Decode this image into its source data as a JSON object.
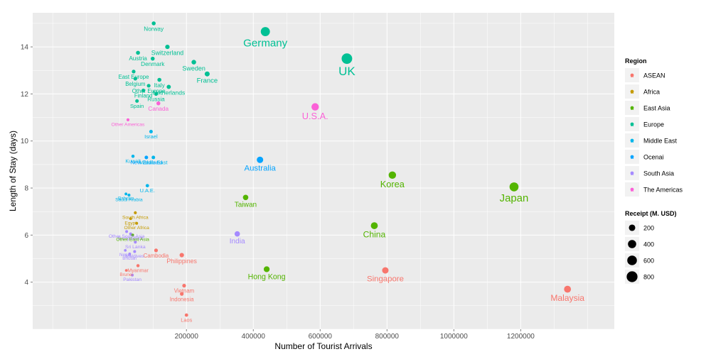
{
  "chart_data": {
    "type": "scatter",
    "title": "",
    "xlabel": "Number of Tourist Arrivals",
    "ylabel": "Length of Stay (days)",
    "xlim": [
      -260000,
      1480000
    ],
    "ylim": [
      2.0,
      15.45
    ],
    "x_ticks": [
      200000,
      400000,
      600000,
      800000,
      1000000,
      1200000
    ],
    "x_tick_labels": [
      "200000",
      "400000",
      "600000",
      "800000",
      "1000000",
      "1200000"
    ],
    "y_ticks": [
      4,
      6,
      8,
      10,
      12,
      14
    ],
    "y_tick_labels": [
      "4",
      "6",
      "8",
      "10",
      "12",
      "14"
    ],
    "grid": true,
    "legend_placement": "right",
    "color_legend": {
      "title": "Region",
      "entries": [
        {
          "name": "ASEAN",
          "color": "#f8766d"
        },
        {
          "name": "Africa",
          "color": "#c49a00"
        },
        {
          "name": "East Asia",
          "color": "#53b400"
        },
        {
          "name": "Europe",
          "color": "#00c094"
        },
        {
          "name": "Middle East",
          "color": "#00b6eb"
        },
        {
          "name": "Ocenai",
          "color": "#06a4ff"
        },
        {
          "name": "South Asia",
          "color": "#a58aff"
        },
        {
          "name": "The Americas",
          "color": "#fb61d7"
        }
      ]
    },
    "size_legend": {
      "title": "Receipt (M. USD)",
      "entries": [
        {
          "label": "200",
          "value": 200
        },
        {
          "label": "400",
          "value": 400
        },
        {
          "label": "600",
          "value": 600
        },
        {
          "label": "800",
          "value": 800
        }
      ]
    },
    "points": [
      {
        "label": "Norway",
        "region": "Europe",
        "x": 102000,
        "y": 15.0,
        "receipt": 40
      },
      {
        "label": "Germany",
        "region": "Europe",
        "x": 436000,
        "y": 14.65,
        "receipt": 520
      },
      {
        "label": "Switzerland",
        "region": "Europe",
        "x": 143000,
        "y": 14.0,
        "receipt": 60
      },
      {
        "label": "Austria",
        "region": "Europe",
        "x": 55000,
        "y": 13.75,
        "receipt": 40
      },
      {
        "label": "Denmark",
        "region": "Europe",
        "x": 99000,
        "y": 13.5,
        "receipt": 40
      },
      {
        "label": "Sweden",
        "region": "Europe",
        "x": 222000,
        "y": 13.35,
        "receipt": 70
      },
      {
        "label": "UK",
        "region": "Europe",
        "x": 680000,
        "y": 13.5,
        "receipt": 750
      },
      {
        "label": "France",
        "region": "Europe",
        "x": 262000,
        "y": 12.85,
        "receipt": 90
      },
      {
        "label": "East Europe",
        "region": "Europe",
        "x": 42000,
        "y": 12.95,
        "receipt": 30
      },
      {
        "label": "Belgium",
        "region": "Europe",
        "x": 47000,
        "y": 12.65,
        "receipt": 30
      },
      {
        "label": "Italy",
        "region": "Europe",
        "x": 119000,
        "y": 12.6,
        "receipt": 40
      },
      {
        "label": "Netherlands",
        "region": "Europe",
        "x": 147000,
        "y": 12.3,
        "receipt": 50
      },
      {
        "label": "Other Europe",
        "region": "Europe",
        "x": 87000,
        "y": 12.35,
        "receipt": 30
      },
      {
        "label": "Finland",
        "region": "Europe",
        "x": 71000,
        "y": 12.15,
        "receipt": 30
      },
      {
        "label": "Russia",
        "region": "Europe",
        "x": 109000,
        "y": 12.0,
        "receipt": 35
      },
      {
        "label": "Spain",
        "region": "Europe",
        "x": 52000,
        "y": 11.7,
        "receipt": 25
      },
      {
        "label": "Canada",
        "region": "The Americas",
        "x": 116000,
        "y": 11.6,
        "receipt": 40
      },
      {
        "label": "U.S.A.",
        "region": "The Americas",
        "x": 585000,
        "y": 11.45,
        "receipt": 300
      },
      {
        "label": "Other Americas",
        "region": "The Americas",
        "x": 25000,
        "y": 10.9,
        "receipt": 10
      },
      {
        "label": "Israel",
        "region": "Middle East",
        "x": 94000,
        "y": 10.4,
        "receipt": 25
      },
      {
        "label": "Kuwait",
        "region": "Middle East",
        "x": 40000,
        "y": 9.35,
        "receipt": 15
      },
      {
        "label": "New Zealand",
        "region": "Ocenai",
        "x": 80000,
        "y": 9.3,
        "receipt": 25
      },
      {
        "label": "Middle East",
        "region": "Middle East",
        "x": 101000,
        "y": 9.3,
        "receipt": 25
      },
      {
        "label": "Australia",
        "region": "Ocenai",
        "x": 420000,
        "y": 9.2,
        "receipt": 200
      },
      {
        "label": "Korea",
        "region": "East Asia",
        "x": 816000,
        "y": 8.55,
        "receipt": 300
      },
      {
        "label": "Japan",
        "region": "East Asia",
        "x": 1180000,
        "y": 8.05,
        "receipt": 500
      },
      {
        "label": "U.A.E.",
        "region": "Middle East",
        "x": 83000,
        "y": 8.1,
        "receipt": 20
      },
      {
        "label": "Taiwan",
        "region": "East Asia",
        "x": 377000,
        "y": 7.6,
        "receipt": 120
      },
      {
        "label": "Saudi Arabia",
        "region": "Middle East",
        "x": 28000,
        "y": 7.7,
        "receipt": 10
      },
      {
        "label": "Bahrain",
        "region": "Middle East",
        "x": 19000,
        "y": 7.75,
        "receipt": 6
      },
      {
        "label": "South Africa",
        "region": "Africa",
        "x": 47000,
        "y": 6.95,
        "receipt": 10
      },
      {
        "label": "Egypt",
        "region": "Africa",
        "x": 33000,
        "y": 6.7,
        "receipt": 6
      },
      {
        "label": "Other Africa",
        "region": "Africa",
        "x": 51000,
        "y": 6.5,
        "receipt": 8
      },
      {
        "label": "China",
        "region": "East Asia",
        "x": 762000,
        "y": 6.4,
        "receipt": 250
      },
      {
        "label": "Other South Asia",
        "region": "South Asia",
        "x": 21000,
        "y": 6.15,
        "receipt": 8
      },
      {
        "label": "Bangladesh",
        "region": "South Asia",
        "x": 33000,
        "y": 6.05,
        "receipt": 8
      },
      {
        "label": "Other East Asia",
        "region": "East Asia",
        "x": 39000,
        "y": 6.0,
        "receipt": 8
      },
      {
        "label": "India",
        "region": "South Asia",
        "x": 352000,
        "y": 6.05,
        "receipt": 120
      },
      {
        "label": "Sri Lanka",
        "region": "South Asia",
        "x": 47000,
        "y": 5.7,
        "receipt": 10
      },
      {
        "label": "Cambodia",
        "region": "ASEAN",
        "x": 109000,
        "y": 5.35,
        "receipt": 30
      },
      {
        "label": "Nepal",
        "region": "South Asia",
        "x": 17000,
        "y": 5.35,
        "receipt": 5
      },
      {
        "label": "Bhutan",
        "region": "South Asia",
        "x": 30000,
        "y": 5.2,
        "receipt": 5
      },
      {
        "label": "Maldives",
        "region": "South Asia",
        "x": 45000,
        "y": 5.3,
        "receipt": 8
      },
      {
        "label": "Philippines",
        "region": "ASEAN",
        "x": 186000,
        "y": 5.15,
        "receipt": 60
      },
      {
        "label": "Myanmar",
        "region": "ASEAN",
        "x": 55000,
        "y": 4.7,
        "receipt": 15
      },
      {
        "label": "Hong Kong",
        "region": "East Asia",
        "x": 440000,
        "y": 4.55,
        "receipt": 150
      },
      {
        "label": "Brunei",
        "region": "ASEAN",
        "x": 20000,
        "y": 4.5,
        "receipt": 5
      },
      {
        "label": "Pakistan",
        "region": "South Asia",
        "x": 38000,
        "y": 4.3,
        "receipt": 8
      },
      {
        "label": "Singapore",
        "region": "ASEAN",
        "x": 795000,
        "y": 4.5,
        "receipt": 200
      },
      {
        "label": "Vietnam",
        "region": "ASEAN",
        "x": 193000,
        "y": 3.85,
        "receipt": 30
      },
      {
        "label": "Malaysia",
        "region": "ASEAN",
        "x": 1340000,
        "y": 3.7,
        "receipt": 250
      },
      {
        "label": "Indonesia",
        "region": "ASEAN",
        "x": 186000,
        "y": 3.5,
        "receipt": 30
      },
      {
        "label": "Laos",
        "region": "ASEAN",
        "x": 200000,
        "y": 2.6,
        "receipt": 20
      }
    ]
  }
}
